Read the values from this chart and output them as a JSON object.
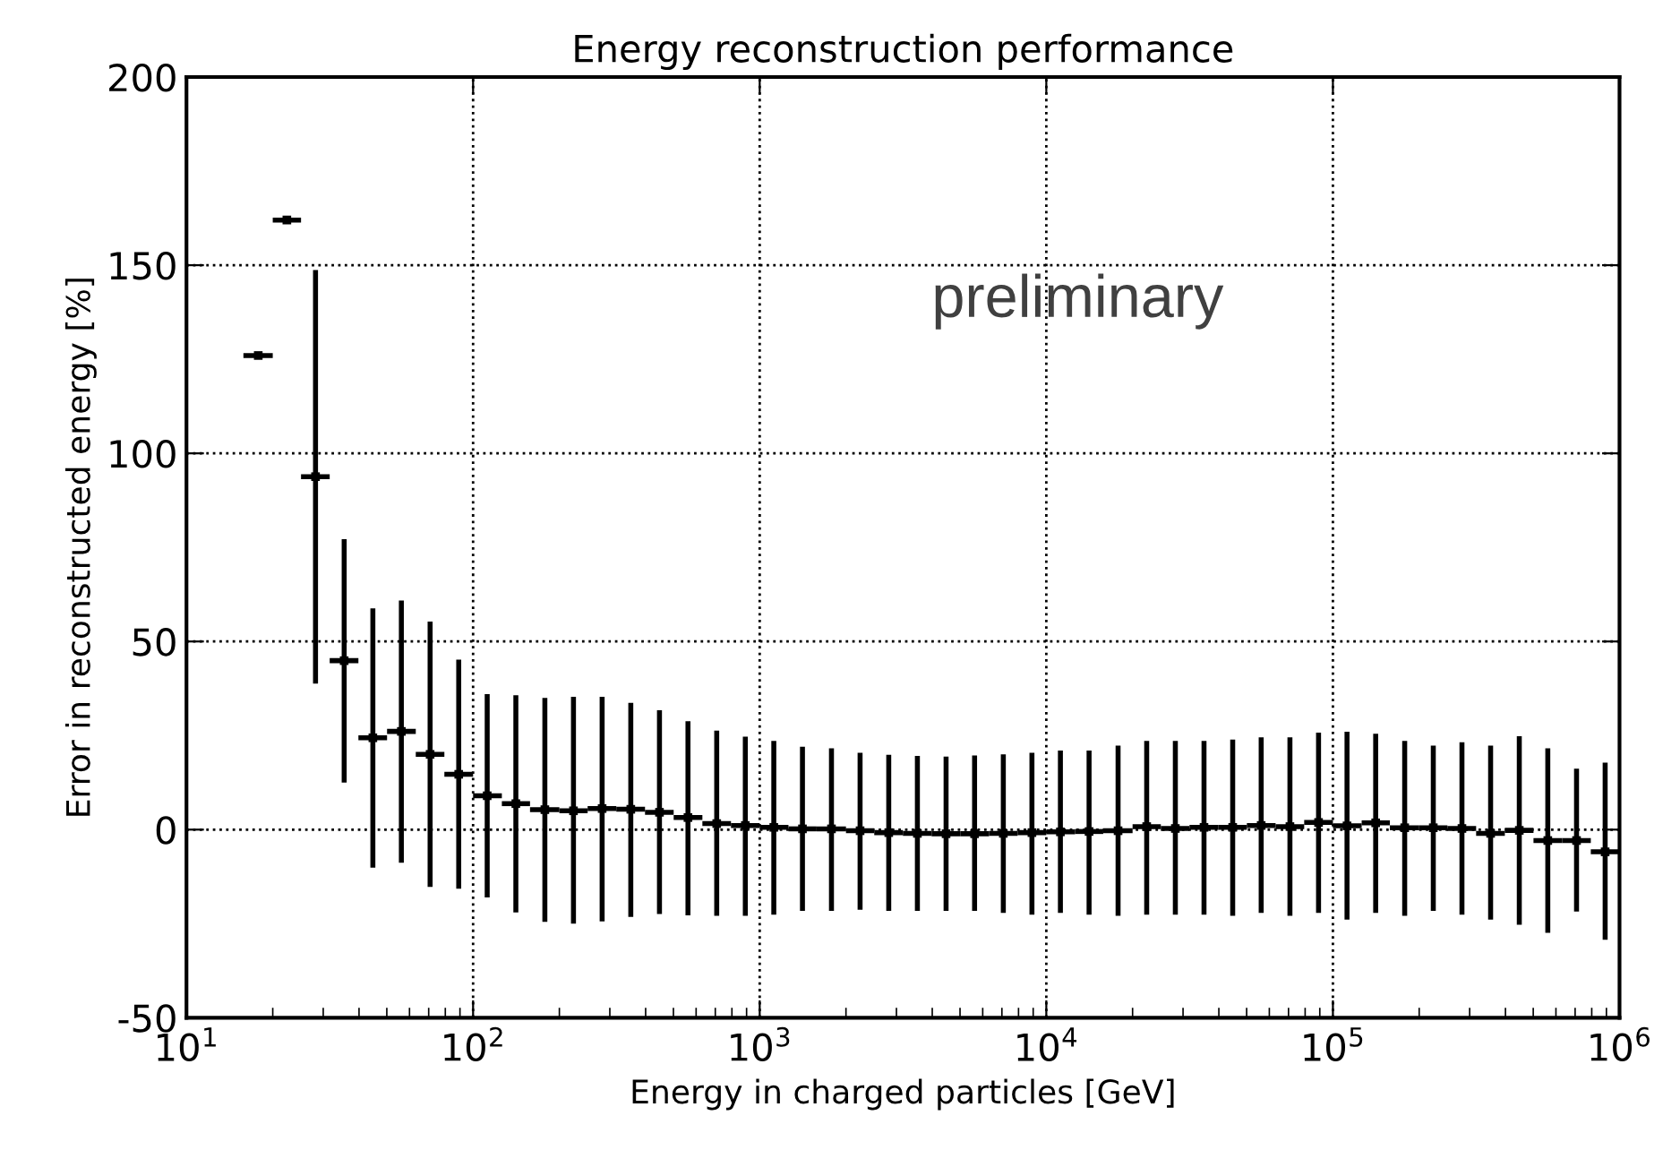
{
  "chart_data": {
    "type": "scatter",
    "title": "Energy reconstruction performance",
    "xlabel": "Energy in charged particles [GeV]",
    "ylabel": "Error in reconstructed energy [%]",
    "annotations": [
      "preliminary"
    ],
    "log": "x",
    "grid": true,
    "marker": "square",
    "color": "#000000",
    "xlim": [
      10,
      1000000
    ],
    "xticks": [
      {
        "value": 10,
        "label": "10$^{1}$"
      },
      {
        "value": 100,
        "label": "10$^{2}$"
      },
      {
        "value": 1000,
        "label": "10$^{3}$"
      },
      {
        "value": 10000,
        "label": "10$^{4}$"
      },
      {
        "value": 100000,
        "label": "10$^{5}$"
      },
      {
        "value": 1000000,
        "label": "10$^{6}$"
      }
    ],
    "ylim": [
      -50,
      200
    ],
    "yticks": [
      -50,
      0,
      50,
      100,
      150,
      200
    ],
    "x": [
      17.8,
      22.4,
      28.2,
      35.5,
      44.7,
      56.2,
      70.8,
      89.1,
      112,
      141,
      178,
      224,
      282,
      355,
      447,
      562,
      708,
      891,
      1120,
      1410,
      1780,
      2240,
      2820,
      3550,
      4470,
      5620,
      7080,
      8910,
      11200,
      14100,
      17800,
      22400,
      28200,
      35500,
      44700,
      56200,
      70800,
      89100,
      112000,
      141000,
      178000,
      224000,
      282000,
      355000,
      447000,
      562000,
      708000,
      891000
    ],
    "values": [
      126,
      162,
      93.8,
      44.9,
      24.4,
      26.1,
      20,
      14.7,
      9,
      6.9,
      5.3,
      5,
      5.6,
      5.4,
      4.6,
      3.2,
      1.6,
      1.1,
      0.6,
      0.2,
      0.2,
      -0.3,
      -0.8,
      -1,
      -1.1,
      -1.1,
      -1,
      -0.8,
      -0.6,
      -0.5,
      -0.3,
      0.8,
      0.3,
      0.6,
      0.6,
      1.1,
      0.8,
      1.9,
      1,
      1.8,
      0.5,
      0.5,
      0.3,
      -1,
      -0.2,
      -2.9,
      -2.9,
      -5.9
    ],
    "errors": [
      null,
      null,
      [
        38.8,
        148.7
      ],
      [
        12.5,
        77.2
      ],
      [
        -10.1,
        58.8
      ],
      [
        -8.8,
        60.9
      ],
      [
        -15.2,
        55.3
      ],
      [
        -15.7,
        45.2
      ],
      [
        -18,
        36
      ],
      [
        -22,
        35.7
      ],
      [
        -24.5,
        35
      ],
      [
        -25,
        35.3
      ],
      [
        -24.4,
        35.3
      ],
      [
        -23.2,
        33.7
      ],
      [
        -22.4,
        31.7
      ],
      [
        -22.8,
        28.8
      ],
      [
        -22.9,
        26.3
      ],
      [
        -22.9,
        24.7
      ],
      [
        -22.6,
        23.6
      ],
      [
        -21.6,
        22
      ],
      [
        -21.6,
        21.6
      ],
      [
        -21.3,
        20.4
      ],
      [
        -21.6,
        19.9
      ],
      [
        -21.6,
        19.6
      ],
      [
        -21.6,
        19.4
      ],
      [
        -21.6,
        19.7
      ],
      [
        -22.1,
        20
      ],
      [
        -22.6,
        20.4
      ],
      [
        -22.1,
        21
      ],
      [
        -22.6,
        21
      ],
      [
        -22.9,
        22.3
      ],
      [
        -22.6,
        23.6
      ],
      [
        -22.6,
        23.6
      ],
      [
        -22.6,
        23.6
      ],
      [
        -22.9,
        23.9
      ],
      [
        -22.1,
        24.5
      ],
      [
        -22.9,
        24.5
      ],
      [
        -22.1,
        25.8
      ],
      [
        -23.9,
        26
      ],
      [
        -22.1,
        25.5
      ],
      [
        -22.9,
        23.6
      ],
      [
        -21.6,
        22.3
      ],
      [
        -22.6,
        23.2
      ],
      [
        -23.9,
        22.3
      ],
      [
        -25.3,
        24.8
      ],
      [
        -27.4,
        21.6
      ],
      [
        -21.8,
        16.2
      ],
      [
        -29.3,
        17.8
      ]
    ],
    "xerrors": [
      [
        15.8,
        20
      ],
      [
        20,
        25.1
      ],
      [
        25.1,
        31.6
      ],
      [
        31.6,
        39.8
      ],
      [
        39.8,
        50.1
      ],
      [
        50.1,
        63.1
      ],
      [
        63.1,
        79.4
      ],
      [
        79.4,
        100
      ],
      [
        100,
        126
      ],
      [
        126,
        158
      ],
      [
        158,
        200
      ],
      [
        200,
        251
      ],
      [
        251,
        316
      ],
      [
        316,
        398
      ],
      [
        398,
        501
      ],
      [
        501,
        631
      ],
      [
        631,
        794
      ],
      [
        794,
        1000
      ],
      [
        1000,
        1260
      ],
      [
        1260,
        1580
      ],
      [
        1580,
        2000
      ],
      [
        2000,
        2510
      ],
      [
        2510,
        3160
      ],
      [
        3160,
        3980
      ],
      [
        3980,
        5010
      ],
      [
        5010,
        6310
      ],
      [
        6310,
        7940
      ],
      [
        7940,
        10000
      ],
      [
        10000,
        12600
      ],
      [
        12600,
        15800
      ],
      [
        15800,
        20000
      ],
      [
        20000,
        25100
      ],
      [
        25100,
        31600
      ],
      [
        31600,
        39800
      ],
      [
        39800,
        50100
      ],
      [
        50100,
        63100
      ],
      [
        63100,
        79400
      ],
      [
        79400,
        100000
      ],
      [
        100000,
        126000
      ],
      [
        126000,
        158000
      ],
      [
        158000,
        200000
      ],
      [
        200000,
        251000
      ],
      [
        251000,
        316000
      ],
      [
        316000,
        398000
      ],
      [
        398000,
        501000
      ],
      [
        501000,
        631000
      ],
      [
        631000,
        794000
      ],
      [
        794000,
        1000000
      ]
    ]
  }
}
